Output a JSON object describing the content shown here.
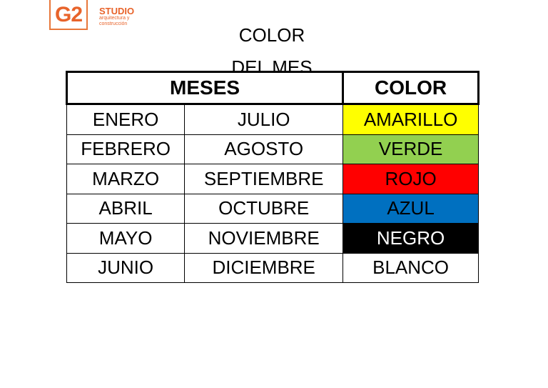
{
  "logo": {
    "mark": "G2",
    "name": "STUDIO",
    "tagline": "arquitectura y\nconstrucción",
    "color": "#e8632a"
  },
  "title": {
    "line1": "COLOR",
    "line2": "DEL MES"
  },
  "table": {
    "headers": {
      "months": "MESES",
      "color": "COLOR"
    },
    "rows": [
      {
        "m1": "ENERO",
        "m2": "JULIO",
        "color": "AMARILLO",
        "bg": "#ffff00",
        "fg": "#000000"
      },
      {
        "m1": "FEBRERO",
        "m2": "AGOSTO",
        "color": "VERDE",
        "bg": "#92d050",
        "fg": "#000000"
      },
      {
        "m1": "MARZO",
        "m2": "SEPTIEMBRE",
        "color": "ROJO",
        "bg": "#ff0000",
        "fg": "#000000"
      },
      {
        "m1": "ABRIL",
        "m2": "OCTUBRE",
        "color": "AZUL",
        "bg": "#0070c0",
        "fg": "#000000"
      },
      {
        "m1": "MAYO",
        "m2": "NOVIEMBRE",
        "color": "NEGRO",
        "bg": "#000000",
        "fg": "#ffffff"
      },
      {
        "m1": "JUNIO",
        "m2": "DICIEMBRE",
        "color": "BLANCO",
        "bg": "#ffffff",
        "fg": "#000000"
      }
    ]
  }
}
